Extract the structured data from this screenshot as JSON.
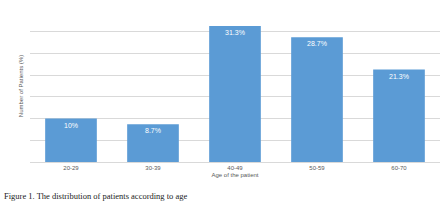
{
  "chart_data": {
    "type": "bar",
    "categories": [
      "20-29",
      "30-39",
      "40-49",
      "50-59",
      "60-70"
    ],
    "values": [
      10,
      8.7,
      31.3,
      28.7,
      21.3
    ],
    "value_labels": [
      "10%",
      "8.7%",
      "31.3%",
      "28.7%",
      "21.3%"
    ],
    "data_labels": true,
    "color": "#5b9bd5",
    "x_label": "Age of the patient",
    "y_label": "Number of Patients (%)",
    "ylim": [
      0,
      35
    ],
    "yticks": [
      0,
      5,
      10,
      15,
      20,
      25,
      30,
      35
    ],
    "grid": true,
    "tick_labels": "x",
    "annotations": [
      "Figure 1. The distribution of patients according to age"
    ]
  }
}
